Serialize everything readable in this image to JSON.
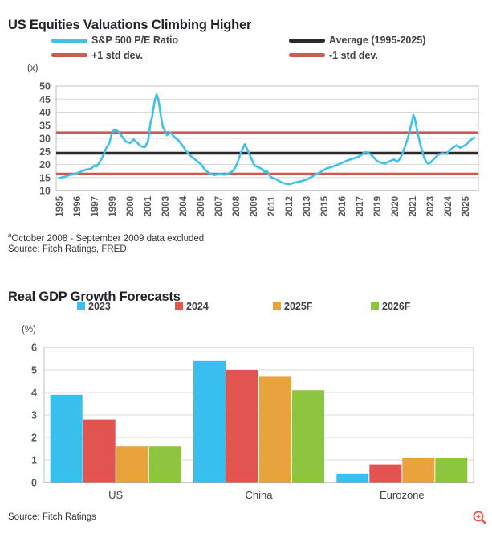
{
  "page": {
    "background": "#ffffff"
  },
  "icons": {
    "zoom_in_color": "#e4574c"
  },
  "chart_data": [
    {
      "type": "line",
      "title": "US Equities Valuations Climbing Higher",
      "unit": "(x)",
      "ylim": [
        10,
        50
      ],
      "yticks": [
        50,
        45,
        40,
        35,
        30,
        25,
        20,
        15,
        10
      ],
      "grid": true,
      "legend_position": "top",
      "xtick_rotation": -90,
      "xtick_labels": [
        "1995",
        "1996",
        "1997",
        "1999",
        "2000",
        "2001",
        "2003",
        "2004",
        "2005",
        "2007",
        "2008",
        "2009",
        "2011",
        "2012",
        "2013",
        "2015",
        "2016",
        "2017",
        "2019",
        "2020",
        "2021",
        "2023",
        "2024",
        "2025"
      ],
      "reference_lines": [
        {
          "key": "average",
          "name": "Average (1995-2025)",
          "value": 24.3,
          "color": "#2b2a29"
        },
        {
          "key": "plus-1-std",
          "name": "+1 std dev.",
          "value": 32.2,
          "color": "#c95b55"
        },
        {
          "key": "minus-1-std",
          "name": "-1 std dev.",
          "value": 16.4,
          "color": "#c95b55"
        }
      ],
      "series": [
        {
          "name": "S&P 500 P/E Ratio",
          "color": "#41c0e8",
          "points": [
            [
              1995.0,
              14.8
            ],
            [
              1995.3,
              15.3
            ],
            [
              1995.6,
              16.0
            ],
            [
              1995.9,
              16.4
            ],
            [
              1996.2,
              17.2
            ],
            [
              1996.5,
              18.0
            ],
            [
              1996.8,
              18.4
            ],
            [
              1997.0,
              19.6
            ],
            [
              1997.2,
              19.2
            ],
            [
              1997.45,
              20.4
            ],
            [
              1997.7,
              21.6
            ],
            [
              1997.9,
              23.0
            ],
            [
              1998.1,
              24.5
            ],
            [
              1998.3,
              26.3
            ],
            [
              1998.5,
              27.2
            ],
            [
              1998.7,
              28.6
            ],
            [
              1998.9,
              31.5
            ],
            [
              1999.1,
              33.4
            ],
            [
              1999.3,
              32.8
            ],
            [
              1999.5,
              31.2
            ],
            [
              1999.75,
              28.8
            ],
            [
              2000.0,
              28.2
            ],
            [
              2000.2,
              29.6
            ],
            [
              2000.4,
              28.4
            ],
            [
              2000.6,
              27.0
            ],
            [
              2000.85,
              26.6
            ],
            [
              2001.05,
              29.0
            ],
            [
              2001.2,
              33.0
            ],
            [
              2001.35,
              36.5
            ],
            [
              2001.5,
              38.0
            ],
            [
              2001.65,
              41.5
            ],
            [
              2001.8,
              44.5
            ],
            [
              2002.0,
              46.8
            ],
            [
              2002.15,
              45.8
            ],
            [
              2002.3,
              43.0
            ],
            [
              2002.5,
              38.5
            ],
            [
              2002.7,
              34.5
            ],
            [
              2002.9,
              33.2
            ],
            [
              2003.1,
              31.2
            ],
            [
              2003.3,
              32.2
            ],
            [
              2003.5,
              30.6
            ],
            [
              2003.75,
              29.2
            ],
            [
              2004.0,
              27.0
            ],
            [
              2004.2,
              25.0
            ],
            [
              2004.45,
              23.2
            ],
            [
              2004.7,
              21.8
            ],
            [
              2005.0,
              20.2
            ],
            [
              2005.3,
              18.8
            ],
            [
              2005.6,
              17.6
            ],
            [
              2005.9,
              16.8
            ],
            [
              2006.2,
              16.4
            ],
            [
              2006.5,
              15.9
            ],
            [
              2006.8,
              16.1
            ],
            [
              2007.1,
              16.4
            ],
            [
              2007.35,
              16.0
            ],
            [
              2007.6,
              16.6
            ],
            [
              2007.85,
              17.6
            ],
            [
              2008.05,
              20.0
            ],
            [
              2008.25,
              24.0
            ],
            [
              2008.5,
              27.8
            ],
            [
              2009.1,
              19.6
            ],
            [
              2009.5,
              19.0
            ],
            [
              2010.0,
              18.2
            ],
            [
              2010.25,
              17.1
            ],
            [
              2010.5,
              17.5
            ],
            [
              2010.75,
              16.0
            ],
            [
              2011.0,
              15.1
            ],
            [
              2011.25,
              14.4
            ],
            [
              2011.5,
              13.4
            ],
            [
              2011.75,
              12.7
            ],
            [
              2012.0,
              12.4
            ],
            [
              2012.25,
              12.9
            ],
            [
              2012.5,
              13.3
            ],
            [
              2012.75,
              13.7
            ],
            [
              2013.0,
              14.2
            ],
            [
              2013.3,
              14.7
            ],
            [
              2013.6,
              15.3
            ],
            [
              2013.9,
              15.9
            ],
            [
              2014.2,
              16.4
            ],
            [
              2014.5,
              16.9
            ],
            [
              2014.8,
              17.6
            ],
            [
              2015.1,
              18.4
            ],
            [
              2015.4,
              19.0
            ],
            [
              2015.7,
              19.7
            ],
            [
              2016.0,
              20.6
            ],
            [
              2016.3,
              21.5
            ],
            [
              2016.6,
              22.2
            ],
            [
              2016.9,
              22.8
            ],
            [
              2017.2,
              23.6
            ],
            [
              2017.45,
              24.4
            ],
            [
              2017.7,
              24.7
            ],
            [
              2017.95,
              24.5
            ],
            [
              2018.2,
              24.0
            ],
            [
              2018.45,
              23.2
            ],
            [
              2018.7,
              22.3
            ],
            [
              2018.95,
              21.4
            ],
            [
              2019.2,
              20.7
            ],
            [
              2019.45,
              20.4
            ],
            [
              2019.7,
              21.2
            ],
            [
              2019.95,
              21.9
            ],
            [
              2020.15,
              21.0
            ],
            [
              2020.35,
              23.0
            ],
            [
              2020.55,
              26.5
            ],
            [
              2020.75,
              30.5
            ],
            [
              2020.95,
              36.0
            ],
            [
              2021.1,
              39.0
            ],
            [
              2021.25,
              37.5
            ],
            [
              2021.45,
              34.0
            ],
            [
              2021.65,
              31.0
            ],
            [
              2021.85,
              28.0
            ],
            [
              2022.05,
              25.8
            ],
            [
              2022.3,
              22.8
            ],
            [
              2022.55,
              21.0
            ],
            [
              2022.8,
              20.3
            ],
            [
              2023.0,
              20.6
            ],
            [
              2023.2,
              22.0
            ],
            [
              2023.45,
              23.8
            ],
            [
              2023.7,
              24.3
            ],
            [
              2023.9,
              24.0
            ],
            [
              2024.1,
              25.4
            ],
            [
              2024.3,
              26.5
            ],
            [
              2024.5,
              27.4
            ],
            [
              2024.7,
              26.4
            ],
            [
              2024.9,
              27.1
            ],
            [
              2025.05,
              27.7
            ],
            [
              2025.2,
              28.9
            ],
            [
              2025.5,
              30.3
            ]
          ]
        }
      ],
      "footnote_marker": "a",
      "footnote": "October 2008 - September 2009 data excluded",
      "source": "Source: Fitch Ratings, FRED"
    },
    {
      "type": "bar",
      "title": "Real GDP Growth Forecasts",
      "unit": "(%)",
      "ylim": [
        0,
        6
      ],
      "yticks": [
        6,
        5,
        4,
        3,
        2,
        1,
        0
      ],
      "grid": true,
      "legend_position": "top",
      "categories": [
        "US",
        "China",
        "Eurozone"
      ],
      "series": [
        {
          "name": "2023",
          "color": "#38bfee",
          "values": [
            3.9,
            5.4,
            0.4
          ]
        },
        {
          "name": "2024",
          "color": "#e15450",
          "values": [
            2.8,
            5.0,
            0.8
          ]
        },
        {
          "name": "2025F",
          "color": "#e8a33c",
          "values": [
            1.6,
            4.7,
            1.1
          ]
        },
        {
          "name": "2026F",
          "color": "#8cc63f",
          "values": [
            1.6,
            4.1,
            1.1
          ]
        }
      ],
      "source": "Source: Fitch Ratings"
    }
  ]
}
